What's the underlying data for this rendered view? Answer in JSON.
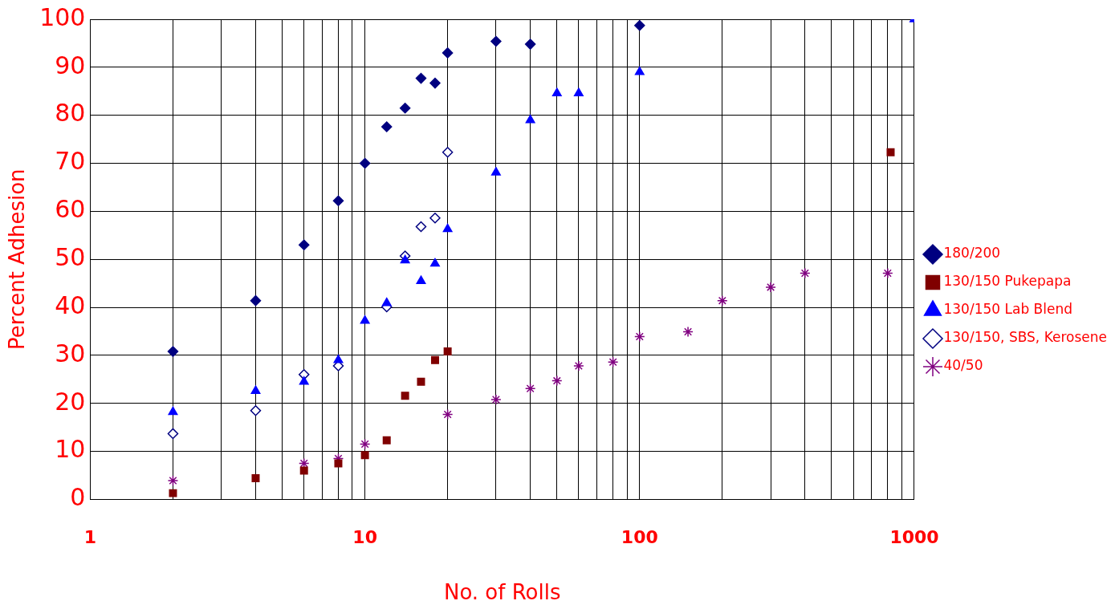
{
  "chart_data": {
    "type": "scatter",
    "xlabel": "No. of Rolls",
    "ylabel": "Percent Adhesion",
    "log": "x",
    "grid": true,
    "legend": "right",
    "xlim": [
      1,
      1000
    ],
    "ylim": [
      0,
      100
    ],
    "xticks": [
      1,
      {
        "value": 2,
        "label": null
      },
      {
        "value": 3,
        "label": null
      },
      {
        "value": 4,
        "label": null
      },
      {
        "value": 5,
        "label": null
      },
      {
        "value": 6,
        "label": null
      },
      {
        "value": 7,
        "label": null
      },
      {
        "value": 8,
        "label": null
      },
      {
        "value": 9,
        "label": null
      },
      10,
      {
        "value": 20,
        "label": null
      },
      {
        "value": 30,
        "label": null
      },
      {
        "value": 40,
        "label": null
      },
      {
        "value": 50,
        "label": null
      },
      {
        "value": 60,
        "label": null
      },
      {
        "value": 70,
        "label": null
      },
      {
        "value": 80,
        "label": null
      },
      {
        "value": 90,
        "label": null
      },
      100,
      {
        "value": 200,
        "label": null
      },
      {
        "value": 300,
        "label": null
      },
      {
        "value": 400,
        "label": null
      },
      {
        "value": 500,
        "label": null
      },
      {
        "value": 600,
        "label": null
      },
      {
        "value": 700,
        "label": null
      },
      {
        "value": 800,
        "label": null
      },
      {
        "value": 900,
        "label": null
      },
      1000
    ],
    "yticks": [
      0,
      10,
      20,
      30,
      40,
      50,
      60,
      70,
      80,
      90,
      100
    ],
    "series": [
      {
        "name": "180/200",
        "color": "#000080",
        "marker": "diamond",
        "x": [
          2,
          4,
          6,
          8,
          10,
          12,
          14,
          16,
          18,
          20,
          30,
          40,
          100
        ],
        "values": [
          30.8,
          41.4,
          53,
          62.2,
          70,
          77.6,
          81.5,
          87.7,
          86.7,
          93,
          95.4,
          94.8,
          98.7
        ]
      },
      {
        "name": "130/150 Pukepapa",
        "color": "#800000",
        "marker": "square",
        "x": [
          2,
          4,
          6,
          8,
          10,
          12,
          14,
          16,
          18,
          20,
          820
        ],
        "values": [
          1.3,
          4.4,
          6,
          7.5,
          9.2,
          12.3,
          21.6,
          24.5,
          29,
          30.8,
          72.3
        ]
      },
      {
        "name": "130/150 Lab Blend",
        "color": "#0000ff",
        "marker": "triangle",
        "x": [
          2,
          4,
          6,
          8,
          10,
          12,
          14,
          16,
          18,
          20,
          30,
          40,
          50,
          60,
          100,
          1000
        ],
        "values": [
          18.2,
          22.6,
          24.5,
          29,
          37.2,
          40.9,
          49.8,
          45.5,
          49.1,
          56.3,
          68.1,
          79,
          84.6,
          84.6,
          89,
          100
        ]
      },
      {
        "name": "130/150, SBS, Kerosene",
        "color": "#000080",
        "marker": "diamond",
        "x": [
          2,
          4,
          6,
          8,
          10,
          12,
          14,
          16,
          18,
          20
        ],
        "values": [
          13.7,
          18.5,
          26,
          27.8,
          null,
          40.1,
          50.7,
          56.8,
          58.6,
          72.3
        ]
      },
      {
        "name": "40/50",
        "color": "#800080",
        "marker": "cross",
        "x": [
          2,
          6,
          8,
          10,
          20,
          30,
          40,
          50,
          60,
          80,
          100,
          150,
          200,
          300,
          400,
          800
        ],
        "values": [
          3.9,
          7.5,
          8.5,
          11.5,
          17.7,
          20.8,
          23.1,
          24.7,
          27.8,
          28.6,
          33.9,
          34.9,
          41.4,
          44.2,
          47.1,
          47.1
        ]
      }
    ]
  }
}
